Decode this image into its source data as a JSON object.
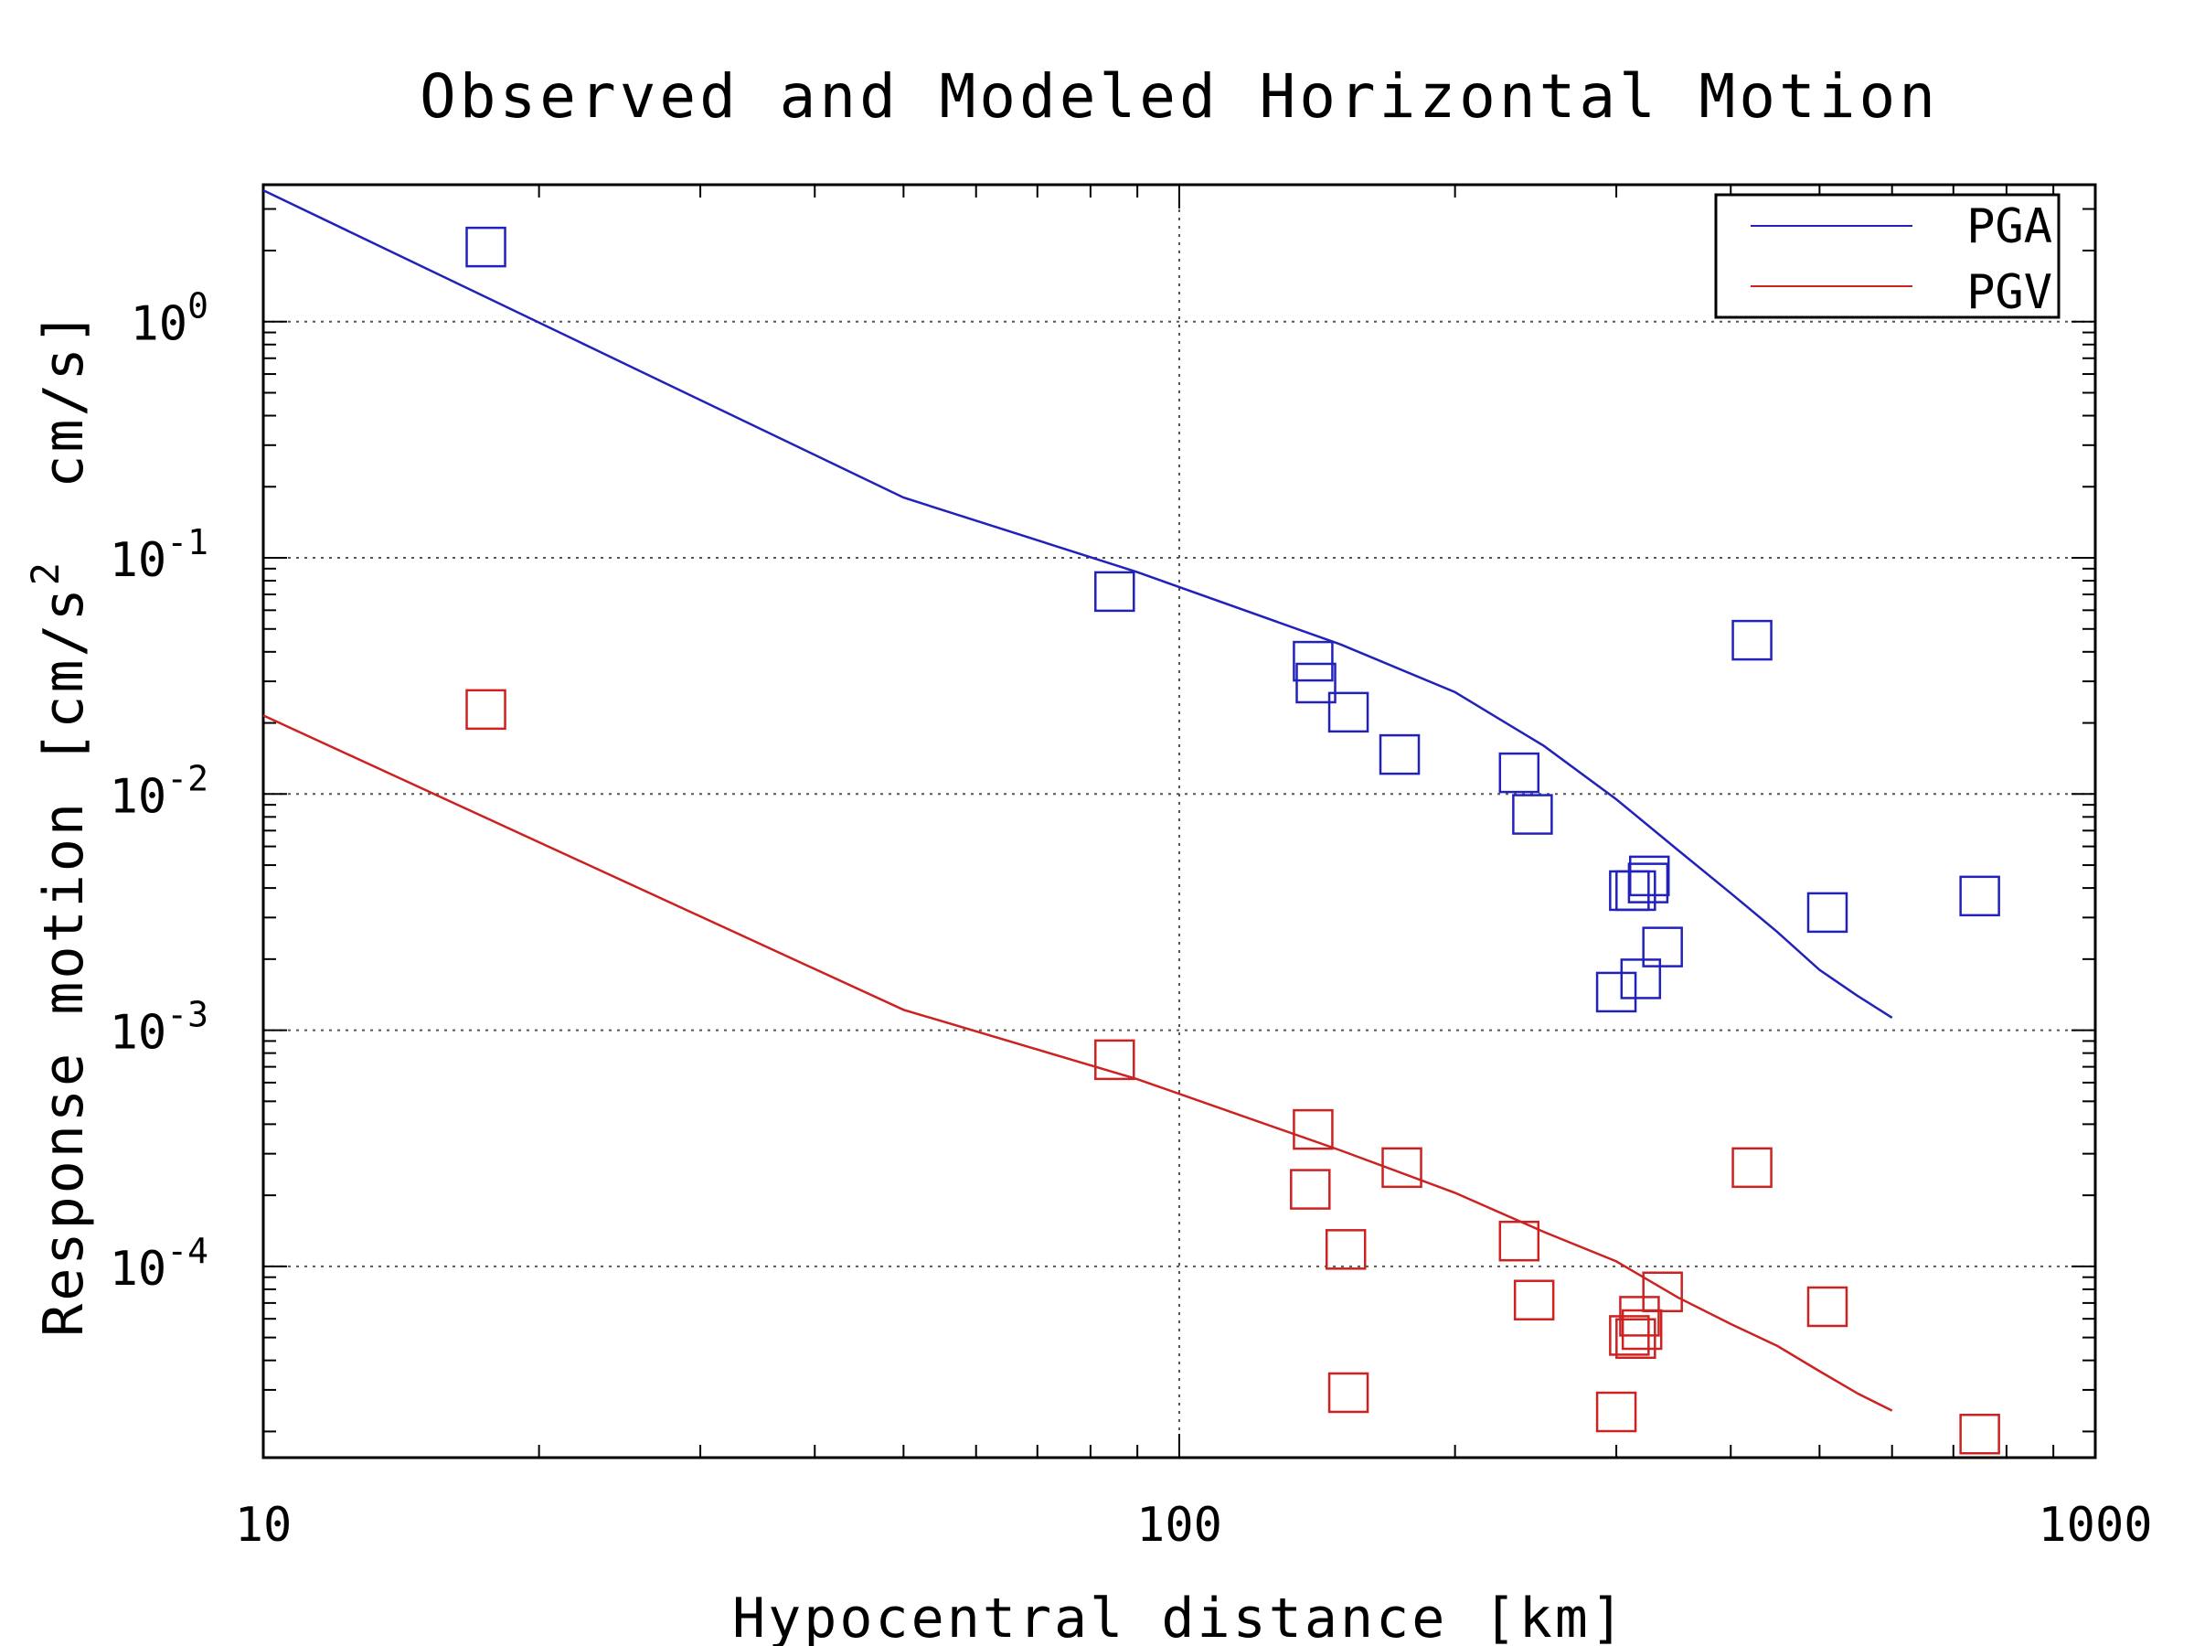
{
  "chart_data": {
    "type": "scatter",
    "title": "Observed and Modeled Horizontal Motion",
    "xlabel": "Hypocentral distance [km]",
    "ylabel_parts": [
      "Response motion [cm/s",
      "2",
      "  cm/s]"
    ],
    "x_scale": "log",
    "y_scale": "log",
    "xlim": [
      10,
      1000
    ],
    "ylim": [
      1.55e-05,
      3.8
    ],
    "grid": true,
    "legend_position": "top-right",
    "x_ticks": [
      {
        "value": 10,
        "label": "10"
      },
      {
        "value": 100,
        "label": "100"
      },
      {
        "value": 1000,
        "label": "1000"
      }
    ],
    "y_ticks": [
      {
        "value": 1,
        "exp": "0"
      },
      {
        "value": 0.1,
        "exp": "-1"
      },
      {
        "value": 0.01,
        "exp": "-2"
      },
      {
        "value": 0.001,
        "exp": "-3"
      },
      {
        "value": 0.0001,
        "exp": "-4"
      }
    ],
    "y_tick_base": "10",
    "series": [
      {
        "name": "PGA",
        "color": "#2222bb",
        "line": {
          "x": [
            10,
            50,
            90,
            150,
            200,
            250,
            300,
            350,
            400,
            450,
            500,
            550,
            600
          ],
          "y": [
            3.6,
            0.18,
            0.087,
            0.043,
            0.027,
            0.016,
            0.0095,
            0.0058,
            0.0038,
            0.0026,
            0.0018,
            0.0014,
            0.00113
          ]
        },
        "points": {
          "x": [
            17.5,
            85,
            140,
            141,
            153,
            174,
            235,
            243,
            315,
            325,
            326,
            310,
            319,
            337,
            300,
            422,
            510,
            748
          ],
          "y": [
            2.07,
            0.072,
            0.0365,
            0.0295,
            0.0222,
            0.0147,
            0.0123,
            0.0082,
            0.0039,
            0.0042,
            0.0045,
            0.0039,
            0.00165,
            0.00225,
            0.00145,
            0.0448,
            0.00315,
            0.0037
          ]
        }
      },
      {
        "name": "PGV",
        "color": "#cc2222",
        "line": {
          "x": [
            10,
            50,
            90,
            150,
            200,
            250,
            300,
            350,
            400,
            450,
            500,
            550,
            600
          ],
          "y": [
            0.0215,
            0.00122,
            0.00062,
            0.00031,
            0.000205,
            0.00014,
            0.000105,
            7.4e-05,
            5.7e-05,
            4.6e-05,
            3.6e-05,
            2.9e-05,
            2.45e-05
          ]
        },
        "points": {
          "x": [
            17.5,
            85,
            140,
            139,
            152,
            175,
            235,
            244,
            153,
            300,
            310,
            315,
            318,
            320,
            337,
            422,
            510,
            748
          ],
          "y": [
            0.0228,
            0.00075,
            0.00038,
            0.000212,
            0.000118,
            0.000262,
            0.000128,
            7.2e-05,
            2.92e-05,
            2.42e-05,
            5.1e-05,
            4.95e-05,
            6.15e-05,
            5.4e-05,
            7.8e-05,
            0.000262,
            6.75e-05,
            1.95e-05
          ]
        }
      }
    ]
  }
}
